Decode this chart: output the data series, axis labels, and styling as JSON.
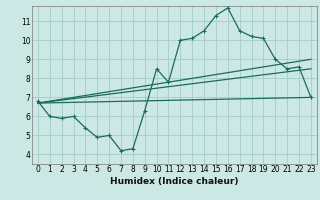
{
  "xlabel": "Humidex (Indice chaleur)",
  "background_color": "#cce8e4",
  "grid_color": "#aacfcb",
  "line_color": "#1a6b5e",
  "xlim": [
    -0.5,
    23.5
  ],
  "ylim": [
    3.5,
    11.8
  ],
  "xticks": [
    0,
    1,
    2,
    3,
    4,
    5,
    6,
    7,
    8,
    9,
    10,
    11,
    12,
    13,
    14,
    15,
    16,
    17,
    18,
    19,
    20,
    21,
    22,
    23
  ],
  "yticks": [
    4,
    5,
    6,
    7,
    8,
    9,
    10,
    11
  ],
  "series1_x": [
    0,
    1,
    2,
    3,
    4,
    5,
    6,
    7,
    8,
    9,
    10,
    11,
    12,
    13,
    14,
    15,
    16,
    17,
    18,
    19,
    20,
    21,
    22,
    23
  ],
  "series1_y": [
    6.8,
    6.0,
    5.9,
    6.0,
    5.4,
    4.9,
    5.0,
    4.2,
    4.3,
    6.3,
    8.5,
    7.8,
    10.0,
    10.1,
    10.5,
    11.3,
    11.7,
    10.5,
    10.2,
    10.1,
    9.0,
    8.5,
    8.6,
    7.0
  ],
  "series2_x": [
    0,
    23
  ],
  "series2_y": [
    6.7,
    7.0
  ],
  "series3_x": [
    0,
    23
  ],
  "series3_y": [
    6.7,
    8.5
  ],
  "series4_x": [
    0,
    23
  ],
  "series4_y": [
    6.7,
    9.0
  ]
}
